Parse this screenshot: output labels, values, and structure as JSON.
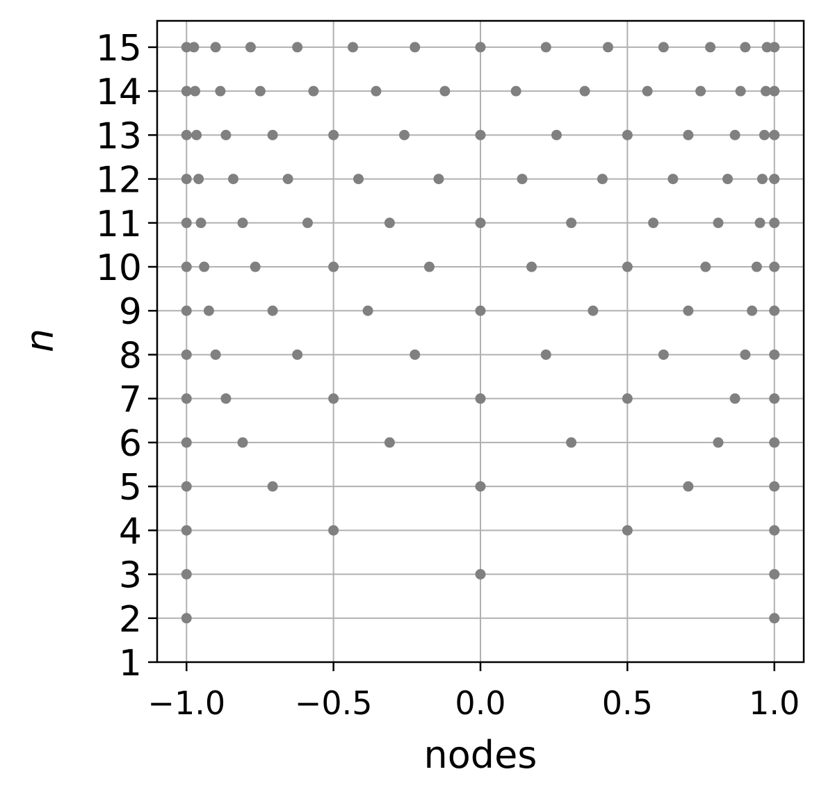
{
  "chart_data": {
    "type": "scatter",
    "title": "",
    "xlabel": "nodes",
    "ylabel": "n",
    "xlim": [
      -1.1,
      1.1
    ],
    "ylim": [
      1,
      15.6
    ],
    "xticks": [
      -1.0,
      -0.5,
      0.0,
      0.5,
      1.0
    ],
    "xtick_labels": [
      "−1.0",
      "−0.5",
      "0.0",
      "0.5",
      "1.0"
    ],
    "yticks": [
      1,
      2,
      3,
      4,
      5,
      6,
      7,
      8,
      9,
      10,
      11,
      12,
      13,
      14,
      15
    ],
    "ytick_labels": [
      "1",
      "2",
      "3",
      "4",
      "5",
      "6",
      "7",
      "8",
      "9",
      "10",
      "11",
      "12",
      "13",
      "14",
      "15"
    ],
    "grid": true,
    "marker_color": "#808080",
    "grid_color": "#b0b0b0",
    "rows": [
      {
        "n": 2,
        "x": [
          -1.0,
          1.0
        ]
      },
      {
        "n": 3,
        "x": [
          -1.0,
          0.0,
          1.0
        ]
      },
      {
        "n": 4,
        "x": [
          -1.0,
          -0.5,
          0.5,
          1.0
        ]
      },
      {
        "n": 5,
        "x": [
          -1.0,
          -0.707,
          0.0,
          0.707,
          1.0
        ]
      },
      {
        "n": 6,
        "x": [
          -1.0,
          -0.809,
          -0.309,
          0.309,
          0.809,
          1.0
        ]
      },
      {
        "n": 7,
        "x": [
          -1.0,
          -0.866,
          -0.5,
          0.0,
          0.5,
          0.866,
          1.0
        ]
      },
      {
        "n": 8,
        "x": [
          -1.0,
          -0.901,
          -0.623,
          -0.223,
          0.223,
          0.623,
          0.901,
          1.0
        ]
      },
      {
        "n": 9,
        "x": [
          -1.0,
          -0.924,
          -0.707,
          -0.383,
          0.0,
          0.383,
          0.707,
          0.924,
          1.0
        ]
      },
      {
        "n": 10,
        "x": [
          -1.0,
          -0.94,
          -0.766,
          -0.5,
          -0.174,
          0.174,
          0.5,
          0.766,
          0.94,
          1.0
        ]
      },
      {
        "n": 11,
        "x": [
          -1.0,
          -0.951,
          -0.809,
          -0.588,
          -0.309,
          0.0,
          0.309,
          0.588,
          0.809,
          0.951,
          1.0
        ]
      },
      {
        "n": 12,
        "x": [
          -1.0,
          -0.959,
          -0.841,
          -0.655,
          -0.415,
          -0.142,
          0.142,
          0.415,
          0.655,
          0.841,
          0.959,
          1.0
        ]
      },
      {
        "n": 13,
        "x": [
          -1.0,
          -0.966,
          -0.866,
          -0.707,
          -0.5,
          -0.259,
          0.0,
          0.259,
          0.5,
          0.707,
          0.866,
          0.966,
          1.0
        ]
      },
      {
        "n": 14,
        "x": [
          -1.0,
          -0.971,
          -0.885,
          -0.749,
          -0.568,
          -0.355,
          -0.121,
          0.121,
          0.355,
          0.568,
          0.749,
          0.885,
          0.971,
          1.0
        ]
      },
      {
        "n": 15,
        "x": [
          -1.0,
          -0.975,
          -0.901,
          -0.782,
          -0.623,
          -0.434,
          -0.223,
          0.0,
          0.223,
          0.434,
          0.623,
          0.782,
          0.901,
          0.975,
          1.0
        ]
      }
    ]
  }
}
